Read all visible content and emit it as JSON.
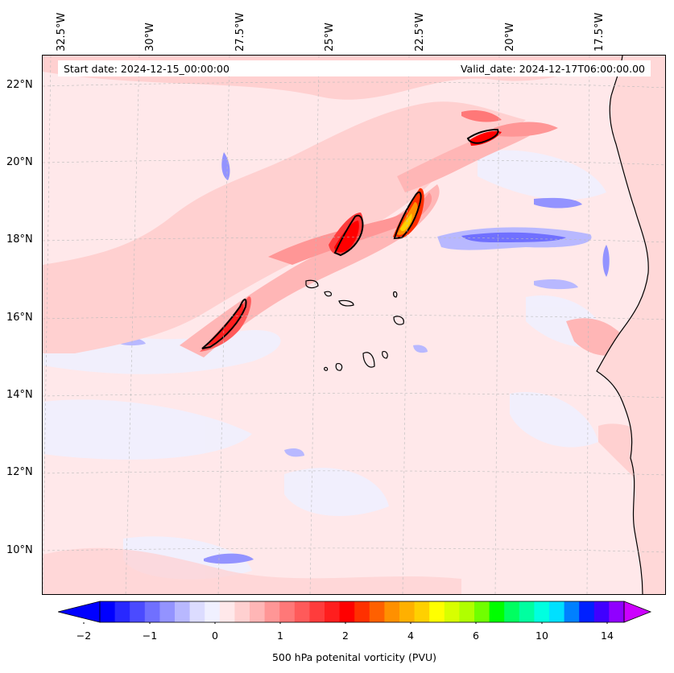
{
  "header": {
    "start_date": "Start date: 2024-12-15_00:00:00",
    "valid_date": "Valid_date: 2024-12-17T06:00:00.00"
  },
  "lon_labels": [
    "32.5°W",
    "30°W",
    "27.5°W",
    "25°W",
    "22.5°W",
    "20°W",
    "17.5°W"
  ],
  "lat_labels": [
    "22°N",
    "20°N",
    "18°N",
    "16°N",
    "14°N",
    "12°N",
    "10°N"
  ],
  "colorbar": {
    "label": "500 hPa potenital vorticity (PVU)",
    "ticks": [
      "−2",
      "−1",
      "0",
      "1",
      "2",
      "4",
      "6",
      "10",
      "14"
    ],
    "colors": [
      "#0000ff",
      "#2828ff",
      "#4b4bff",
      "#7070ff",
      "#9393ff",
      "#b8b8ff",
      "#dcdcff",
      "#f0f0ff",
      "#ffe8ea",
      "#ffd0d0",
      "#ffb6b6",
      "#ff9696",
      "#ff7878",
      "#ff5a5a",
      "#ff3c3c",
      "#ff1e1e",
      "#ff0000",
      "#ff3000",
      "#ff6000",
      "#ff9000",
      "#ffb000",
      "#ffd000",
      "#ffff00",
      "#d8ff00",
      "#b0ff00",
      "#70ff00",
      "#00ff00",
      "#00ff60",
      "#00ffa0",
      "#00ffe0",
      "#00e0ff",
      "#0080ff",
      "#0020ff",
      "#4000ff",
      "#9000ff"
    ],
    "extend_low_color": "#0000ff",
    "extend_high_color": "#cc00ff"
  }
}
